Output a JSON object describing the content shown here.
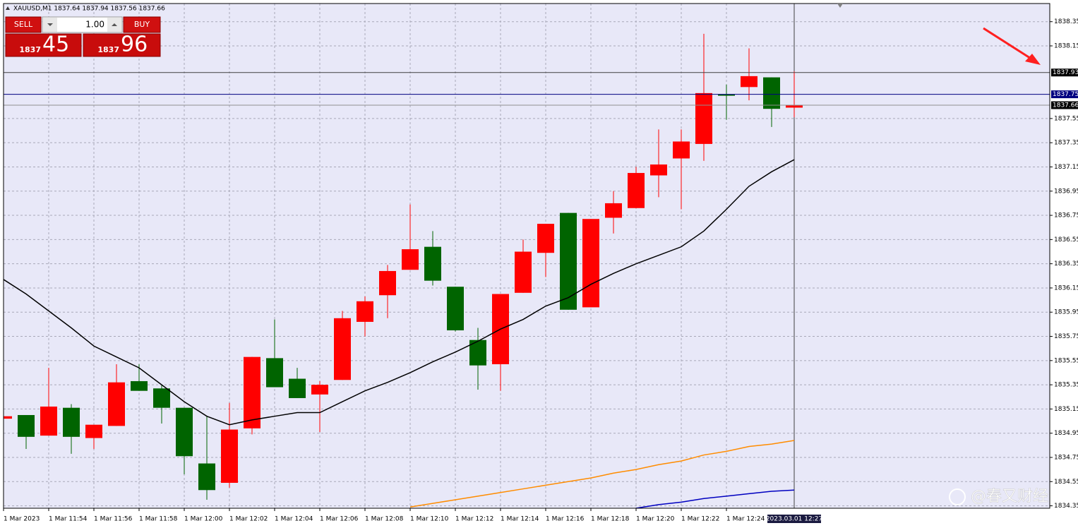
{
  "chart_data": {
    "type": "candlestick",
    "title": "XAUUSD,M1  1837.64 1837.94 1837.56 1837.66",
    "categories": [
      "1 Mar 2023",
      null,
      "1 Mar 11:54",
      null,
      "1 Mar 11:56",
      null,
      "1 Mar 11:58",
      null,
      "1 Mar 12:00",
      null,
      "1 Mar 12:02",
      null,
      "1 Mar 12:04",
      null,
      "1 Mar 12:06",
      null,
      "1 Mar 12:08",
      null,
      "1 Mar 12:10",
      null,
      "1 Mar 12:12",
      null,
      "1 Mar 12:14",
      null,
      "1 Mar 12:16",
      null,
      "1 Mar 12:18",
      null,
      "1 Mar 12:20",
      null,
      "1 Mar 12:22",
      null,
      "1 Mar 12:24",
      null,
      null,
      "2023.03.01 12:27"
    ],
    "open": [
      1835.07,
      1835.1,
      1834.93,
      1835.16,
      1834.91,
      1835.01,
      1835.38,
      1835.32,
      1835.16,
      1834.7,
      1834.54,
      1834.99,
      1835.57,
      1835.4,
      1835.27,
      1835.39,
      1835.87,
      1836.09,
      1836.3,
      1836.49,
      1836.16,
      1835.72,
      1835.52,
      1836.11,
      1836.44,
      1836.77,
      1835.99,
      1836.73,
      1836.81,
      1837.08,
      1837.22,
      1837.34,
      1837.75,
      1837.81,
      1837.89,
      1837.64
    ],
    "high": [
      1835.09,
      1835.1,
      1835.49,
      1835.19,
      1835.02,
      1835.52,
      1835.52,
      1835.35,
      1835.16,
      1835.09,
      1835.2,
      1835.58,
      1835.89,
      1835.49,
      1835.38,
      1835.96,
      1836.08,
      1836.34,
      1836.84,
      1836.62,
      1836.16,
      1835.82,
      1836.1,
      1836.55,
      1836.68,
      1836.77,
      1836.72,
      1836.95,
      1837.15,
      1837.46,
      1837.46,
      1838.25,
      1837.83,
      1838.13,
      1837.89,
      1837.94
    ],
    "low": [
      1834.44,
      1834.82,
      1834.93,
      1834.78,
      1834.82,
      1835.01,
      1835.3,
      1835.03,
      1834.61,
      1834.4,
      1834.5,
      1834.94,
      1835.33,
      1835.24,
      1834.96,
      1835.39,
      1835.75,
      1835.9,
      1836.3,
      1836.17,
      1835.79,
      1835.31,
      1835.3,
      1836.11,
      1836.24,
      1835.97,
      1835.99,
      1836.6,
      1836.81,
      1836.9,
      1836.8,
      1837.2,
      1837.54,
      1837.7,
      1837.48,
      1837.56
    ],
    "close": [
      1835.09,
      1834.92,
      1835.17,
      1834.92,
      1835.02,
      1835.37,
      1835.3,
      1835.16,
      1834.76,
      1834.48,
      1834.98,
      1835.58,
      1835.33,
      1835.24,
      1835.35,
      1835.9,
      1836.04,
      1836.29,
      1836.47,
      1836.21,
      1835.8,
      1835.51,
      1836.1,
      1836.45,
      1836.68,
      1835.97,
      1836.72,
      1836.85,
      1837.1,
      1837.17,
      1837.36,
      1837.76,
      1837.74,
      1837.9,
      1837.63,
      1837.66
    ],
    "up_color": "#ff0000",
    "down_color": "#006400",
    "lines": [
      {
        "color": "#000000",
        "values": [
          1836.22,
          1836.1,
          1835.96,
          1835.82,
          1835.67,
          1835.58,
          1835.49,
          1835.35,
          1835.21,
          1835.09,
          1835.02,
          1835.06,
          1835.09,
          1835.12,
          1835.12,
          1835.21,
          1835.3,
          1835.37,
          1835.45,
          1835.54,
          1835.62,
          1835.71,
          1835.81,
          1835.89,
          1836.0,
          1836.07,
          1836.18,
          1836.27,
          1836.35,
          1836.42,
          1836.49,
          1836.62,
          1836.8,
          1836.99,
          1837.11,
          1837.21
        ]
      },
      {
        "color": "#ff8c00",
        "values": [
          null,
          null,
          null,
          null,
          null,
          null,
          null,
          null,
          null,
          null,
          null,
          null,
          null,
          null,
          null,
          null,
          null,
          null,
          1834.34,
          1834.37,
          1834.4,
          1834.43,
          1834.46,
          1834.49,
          1834.52,
          1834.55,
          1834.58,
          1834.62,
          1834.65,
          1834.69,
          1834.72,
          1834.77,
          1834.8,
          1834.84,
          1834.86,
          1834.89
        ]
      },
      {
        "color": "#0000c0",
        "values": [
          null,
          null,
          null,
          null,
          null,
          null,
          null,
          null,
          null,
          null,
          null,
          null,
          null,
          null,
          null,
          null,
          null,
          null,
          null,
          null,
          null,
          null,
          null,
          null,
          null,
          null,
          null,
          null,
          1834.33,
          1834.36,
          1834.38,
          1834.41,
          1834.43,
          1834.45,
          1834.47,
          1834.48
        ]
      }
    ],
    "hlines": [
      {
        "value": 1837.93,
        "color": "#404040",
        "label_color": "#000000"
      },
      {
        "value": 1837.75,
        "color": "#000080",
        "label_color": "#000080"
      },
      {
        "value": 1837.66,
        "color": "#909090",
        "label_color": "#000000"
      }
    ],
    "ylim": [
      1834.33,
      1838.5
    ],
    "yticks": [
      1834.35,
      1834.55,
      1834.75,
      1834.95,
      1835.15,
      1835.35,
      1835.55,
      1835.75,
      1835.95,
      1836.15,
      1836.35,
      1836.55,
      1836.75,
      1836.95,
      1837.15,
      1837.35,
      1837.55,
      1838.15,
      1838.35
    ],
    "grid": true
  },
  "trade_panel": {
    "sell": "SELL",
    "buy": "BUY",
    "lot": "1.00",
    "sell_price_main": "1837",
    "sell_price_pips": "45",
    "buy_price_main": "1837",
    "buy_price_pips": "96"
  },
  "watermark": "@春又财经"
}
